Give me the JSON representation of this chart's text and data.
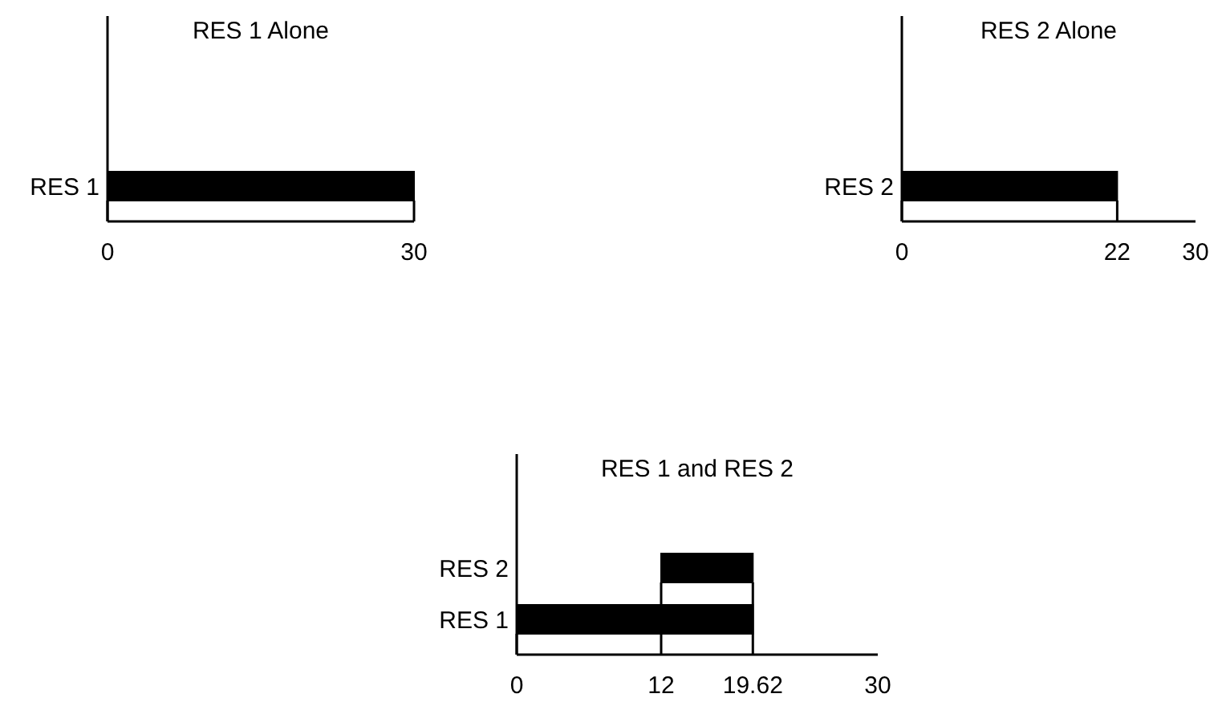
{
  "chart_data": [
    {
      "type": "bar",
      "orientation": "horizontal",
      "title": "RES 1 Alone",
      "categories": [
        "RES 1"
      ],
      "values": [
        30
      ],
      "base": [
        0
      ],
      "color": "#000000",
      "xlim": [
        0,
        30
      ],
      "xticks": [
        0,
        30
      ]
    },
    {
      "type": "bar",
      "orientation": "horizontal",
      "title": "RES 2 Alone",
      "categories": [
        "RES 2"
      ],
      "values": [
        22
      ],
      "base": [
        0
      ],
      "color": "#000000",
      "xlim": [
        0,
        30
      ],
      "xticks": [
        0,
        22,
        30
      ]
    },
    {
      "type": "bar",
      "orientation": "horizontal",
      "title": "RES 1 and RES 2",
      "categories": [
        "RES 2",
        "RES 1"
      ],
      "values": [
        7.62,
        19.62
      ],
      "base": [
        12,
        0
      ],
      "color": "#000000",
      "xlim": [
        0,
        30
      ],
      "xticks": [
        0,
        12,
        19.62,
        30
      ]
    }
  ]
}
